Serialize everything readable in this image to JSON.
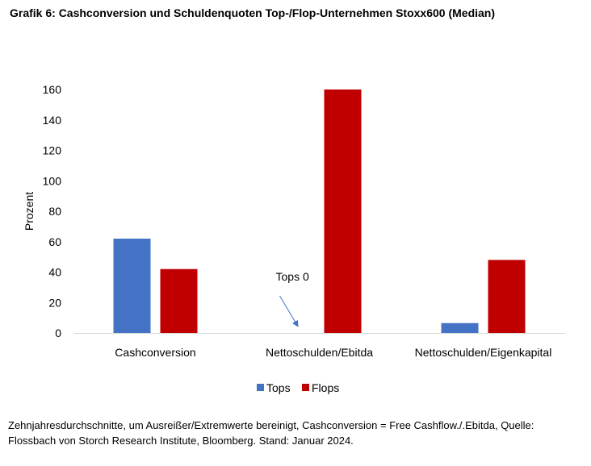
{
  "chart_data": {
    "type": "bar",
    "title": "Grafik 6: Cashconversion und Schuldenquoten Top-/Flop-Unternehmen Stoxx600 (Median)",
    "xlabel": "",
    "ylabel": "Prozent",
    "ylim": [
      0,
      160
    ],
    "yticks": [
      0,
      20,
      40,
      60,
      80,
      100,
      120,
      140,
      160
    ],
    "categories": [
      "Cashconversion",
      "Nettoschulden/Ebitda",
      "Nettoschulden/Eigenkapital"
    ],
    "series": [
      {
        "name": "Tops",
        "values": [
          62,
          0,
          6.5
        ],
        "color": "#4472C4"
      },
      {
        "name": "Flops",
        "values": [
          42,
          160,
          48
        ],
        "color": "#C00000"
      }
    ],
    "annotations": [
      {
        "text": "Tops 0",
        "category": "Nettoschulden/Ebitda",
        "series": "Tops",
        "value": 0
      }
    ],
    "grid": false,
    "legend_position": "bottom"
  },
  "footnote": "Zehnjahresdurchschnitte, um Ausreißer/Extremwerte bereinigt, Cashconversion = Free Cashflow./.Ebitda, Quelle: Flossbach von Storch Research Institute, Bloomberg. Stand: Januar 2024.",
  "colors": {
    "tops": "#4472C4",
    "flops": "#C00000",
    "axis": "#D9D9D9",
    "arrow": "#4472C4"
  }
}
